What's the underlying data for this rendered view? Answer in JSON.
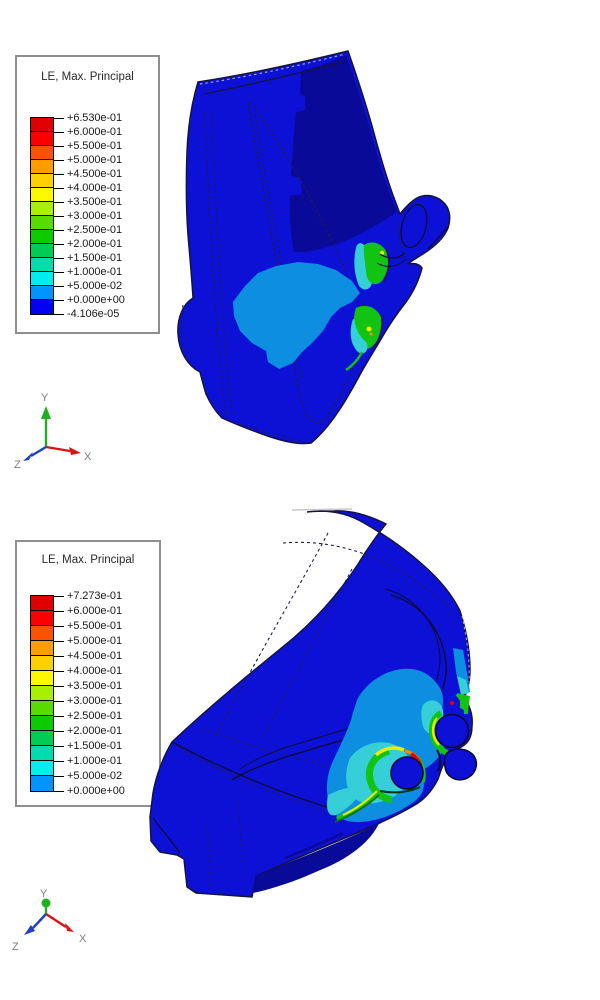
{
  "viewports": [
    {
      "id": "top",
      "legend": {
        "title": "LE, Max. Principal",
        "labels": [
          "+6.530e-01",
          "+6.000e-01",
          "+5.500e-01",
          "+5.000e-01",
          "+4.500e-01",
          "+4.000e-01",
          "+3.500e-01",
          "+3.000e-01",
          "+2.500e-01",
          "+2.000e-01",
          "+1.500e-01",
          "+1.000e-01",
          "+5.000e-02",
          "+0.000e+00",
          "-4.106e-05"
        ],
        "colors": [
          "#e10000",
          "#fb0000",
          "#ff5200",
          "#ff9d00",
          "#ffd000",
          "#fdf800",
          "#aaee00",
          "#58dc00",
          "#0ccc00",
          "#00cc55",
          "#00dcab",
          "#00eded",
          "#0094ff",
          "#0202f0"
        ]
      },
      "axis_triad": {
        "x": "X",
        "y": "Y",
        "z": "Z"
      }
    },
    {
      "id": "bottom",
      "legend": {
        "title": "LE, Max. Principal",
        "labels": [
          "+7.273e-01",
          "+6.000e-01",
          "+5.500e-01",
          "+5.000e-01",
          "+4.500e-01",
          "+4.000e-01",
          "+3.500e-01",
          "+3.000e-01",
          "+2.500e-01",
          "+2.000e-01",
          "+1.500e-01",
          "+1.000e-01",
          "+5.000e-02",
          "+0.000e+00"
        ],
        "colors": [
          "#e10000",
          "#fb0000",
          "#ff5200",
          "#ff9d00",
          "#ffd000",
          "#fdf800",
          "#aaee00",
          "#58dc00",
          "#0ccc00",
          "#00cc55",
          "#00dcab",
          "#00eded",
          "#0094ff"
        ]
      },
      "axis_triad": {
        "x": "X",
        "y": "Y",
        "z": "Z"
      }
    }
  ],
  "palette": {
    "model_base": "#0d11d6",
    "model_dark": "#0a0a99",
    "contour_light_blue": "#0e8ee0",
    "contour_cyan": "#36cfd8",
    "contour_green": "#12c312",
    "contour_yellow": "#e9ec00",
    "contour_orange": "#ff8800",
    "contour_red": "#e60000"
  }
}
